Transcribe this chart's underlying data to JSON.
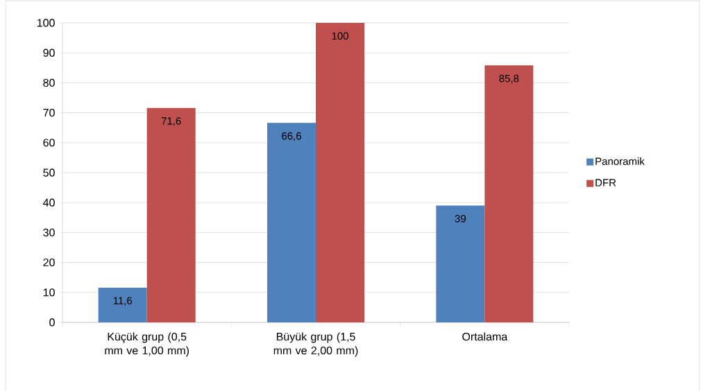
{
  "chart_data": {
    "type": "bar",
    "categories": [
      "Küçük grup (0,5 mm ve 1,00 mm)",
      "Büyük grup (1,5 mm ve 2,00 mm)",
      "Ortalama"
    ],
    "series": [
      {
        "name": "Panoramik",
        "color": "#4f81bd",
        "values": [
          11.6,
          66.6,
          39
        ],
        "value_labels": [
          "11,6",
          "66,6",
          "39"
        ]
      },
      {
        "name": "DFR",
        "color": "#c0504d",
        "values": [
          71.6,
          100,
          85.8
        ],
        "value_labels": [
          "71,6",
          "100",
          "85,8"
        ]
      }
    ],
    "ylim": [
      0,
      100
    ],
    "yticks": [
      0,
      10,
      20,
      30,
      40,
      50,
      60,
      70,
      80,
      90,
      100
    ],
    "grid": "y",
    "legend": "right"
  }
}
